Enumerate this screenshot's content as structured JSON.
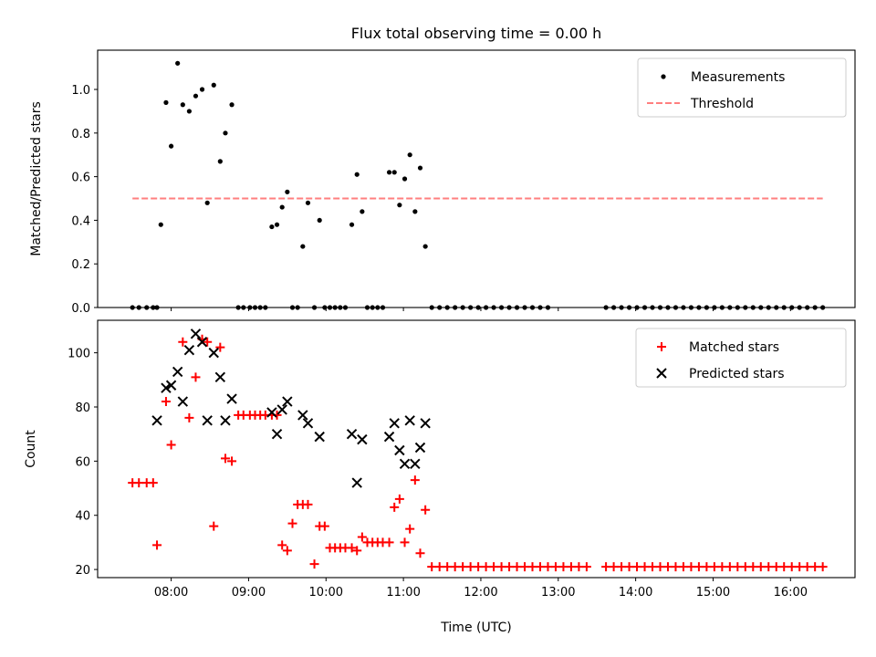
{
  "chart_data": [
    {
      "type": "scatter",
      "title": "Flux total observing time = 0.00 h",
      "xlabel": "",
      "ylabel": "Matched/Predicted stars",
      "xlim": [
        "07:03",
        "16:50"
      ],
      "ylim": [
        0,
        1.18
      ],
      "yticks": [
        "0.0",
        "0.2",
        "0.4",
        "0.6",
        "0.8",
        "1.0"
      ],
      "xticks": [
        "08:00",
        "09:00",
        "10:00",
        "11:00",
        "12:00",
        "13:00",
        "14:00",
        "15:00",
        "16:00"
      ],
      "show_xtick_labels": false,
      "legend": "top-right",
      "grid": false,
      "series": [
        {
          "name": "Measurements",
          "kind": "scatter",
          "marker": "dot",
          "color": "#000000",
          "points": [
            [
              "07:30",
              0
            ],
            [
              "07:35",
              0
            ],
            [
              "07:41",
              0
            ],
            [
              "07:46",
              0
            ],
            [
              "07:49",
              0
            ],
            [
              "07:52",
              0.38
            ],
            [
              "07:56",
              0.94
            ],
            [
              "08:00",
              0.74
            ],
            [
              "08:05",
              1.12
            ],
            [
              "08:09",
              0.93
            ],
            [
              "08:14",
              0.9
            ],
            [
              "08:19",
              0.97
            ],
            [
              "08:24",
              1.0
            ],
            [
              "08:28",
              0.48
            ],
            [
              "08:33",
              1.02
            ],
            [
              "08:38",
              0.67
            ],
            [
              "08:42",
              0.8
            ],
            [
              "08:47",
              0.93
            ],
            [
              "08:52",
              0
            ],
            [
              "08:56",
              0
            ],
            [
              "09:01",
              0
            ],
            [
              "09:05",
              0
            ],
            [
              "09:09",
              0
            ],
            [
              "09:13",
              0
            ],
            [
              "09:18",
              0.37
            ],
            [
              "09:22",
              0.38
            ],
            [
              "09:26",
              0.46
            ],
            [
              "09:30",
              0.53
            ],
            [
              "09:34",
              0
            ],
            [
              "09:38",
              0
            ],
            [
              "09:42",
              0.28
            ],
            [
              "09:46",
              0.48
            ],
            [
              "09:51",
              0
            ],
            [
              "09:55",
              0.4
            ],
            [
              "09:59",
              0
            ],
            [
              "10:03",
              0
            ],
            [
              "10:07",
              0
            ],
            [
              "10:11",
              0
            ],
            [
              "10:15",
              0
            ],
            [
              "10:20",
              0.38
            ],
            [
              "10:24",
              0.61
            ],
            [
              "10:28",
              0.44
            ],
            [
              "10:32",
              0
            ],
            [
              "10:36",
              0
            ],
            [
              "10:40",
              0
            ],
            [
              "10:44",
              0
            ],
            [
              "10:49",
              0.62
            ],
            [
              "10:53",
              0.62
            ],
            [
              "10:57",
              0.47
            ],
            [
              "11:01",
              0.59
            ],
            [
              "11:05",
              0.7
            ],
            [
              "11:09",
              0.44
            ],
            [
              "11:13",
              0.64
            ],
            [
              "11:17",
              0.28
            ],
            [
              "11:22",
              0
            ],
            [
              "11:28",
              0
            ],
            [
              "11:34",
              0
            ],
            [
              "11:40",
              0
            ],
            [
              "11:46",
              0
            ],
            [
              "11:52",
              0
            ],
            [
              "11:58",
              0
            ],
            [
              "12:04",
              0
            ],
            [
              "12:10",
              0
            ],
            [
              "12:16",
              0
            ],
            [
              "12:22",
              0
            ],
            [
              "12:28",
              0
            ],
            [
              "12:34",
              0
            ],
            [
              "12:40",
              0
            ],
            [
              "12:46",
              0
            ],
            [
              "12:52",
              0
            ],
            [
              "13:37",
              0
            ],
            [
              "13:43",
              0
            ],
            [
              "13:49",
              0
            ],
            [
              "13:55",
              0
            ],
            [
              "14:01",
              0
            ],
            [
              "14:07",
              0
            ],
            [
              "14:13",
              0
            ],
            [
              "14:19",
              0
            ],
            [
              "14:25",
              0
            ],
            [
              "14:31",
              0
            ],
            [
              "14:37",
              0
            ],
            [
              "14:43",
              0
            ],
            [
              "14:49",
              0
            ],
            [
              "14:55",
              0
            ],
            [
              "15:01",
              0
            ],
            [
              "15:07",
              0
            ],
            [
              "15:13",
              0
            ],
            [
              "15:19",
              0
            ],
            [
              "15:25",
              0
            ],
            [
              "15:31",
              0
            ],
            [
              "15:37",
              0
            ],
            [
              "15:43",
              0
            ],
            [
              "15:49",
              0
            ],
            [
              "15:55",
              0
            ],
            [
              "16:01",
              0
            ],
            [
              "16:07",
              0
            ],
            [
              "16:13",
              0
            ],
            [
              "16:19",
              0
            ],
            [
              "16:25",
              0
            ]
          ]
        },
        {
          "name": "Threshold",
          "kind": "line",
          "dash": "dashed",
          "color": "#ff7f7f",
          "points": [
            [
              "07:30",
              0.5
            ],
            [
              "16:25",
              0.5
            ]
          ]
        }
      ]
    },
    {
      "type": "scatter",
      "title": "",
      "xlabel": "Time (UTC)",
      "ylabel": "Count",
      "xlim": [
        "07:03",
        "16:50"
      ],
      "ylim": [
        17,
        112
      ],
      "yticks": [
        "20",
        "40",
        "60",
        "80",
        "100"
      ],
      "xticks": [
        "08:00",
        "09:00",
        "10:00",
        "11:00",
        "12:00",
        "13:00",
        "14:00",
        "15:00",
        "16:00"
      ],
      "show_xtick_labels": true,
      "legend": "top-right",
      "grid": false,
      "series": [
        {
          "name": "Matched stars",
          "kind": "scatter",
          "marker": "plus",
          "color": "#ff0000",
          "points": [
            [
              "07:30",
              52
            ],
            [
              "07:35",
              52
            ],
            [
              "07:41",
              52
            ],
            [
              "07:46",
              52
            ],
            [
              "07:49",
              29
            ],
            [
              "07:56",
              82
            ],
            [
              "08:00",
              66
            ],
            [
              "08:09",
              104
            ],
            [
              "08:14",
              76
            ],
            [
              "08:19",
              91
            ],
            [
              "08:24",
              105
            ],
            [
              "08:28",
              104
            ],
            [
              "08:33",
              36
            ],
            [
              "08:38",
              102
            ],
            [
              "08:42",
              61
            ],
            [
              "08:47",
              60
            ],
            [
              "08:52",
              77
            ],
            [
              "08:56",
              77
            ],
            [
              "09:01",
              77
            ],
            [
              "09:05",
              77
            ],
            [
              "09:09",
              77
            ],
            [
              "09:13",
              77
            ],
            [
              "09:18",
              77
            ],
            [
              "09:22",
              77
            ],
            [
              "09:26",
              29
            ],
            [
              "09:30",
              27
            ],
            [
              "09:34",
              37
            ],
            [
              "09:38",
              44
            ],
            [
              "09:42",
              44
            ],
            [
              "09:46",
              44
            ],
            [
              "09:51",
              22
            ],
            [
              "09:55",
              36
            ],
            [
              "09:59",
              36
            ],
            [
              "10:03",
              28
            ],
            [
              "10:07",
              28
            ],
            [
              "10:11",
              28
            ],
            [
              "10:15",
              28
            ],
            [
              "10:20",
              28
            ],
            [
              "10:24",
              27
            ],
            [
              "10:28",
              32
            ],
            [
              "10:32",
              30
            ],
            [
              "10:36",
              30
            ],
            [
              "10:40",
              30
            ],
            [
              "10:44",
              30
            ],
            [
              "10:49",
              30
            ],
            [
              "10:53",
              43
            ],
            [
              "10:57",
              46
            ],
            [
              "11:01",
              30
            ],
            [
              "11:05",
              35
            ],
            [
              "11:09",
              53
            ],
            [
              "11:13",
              26
            ],
            [
              "11:17",
              42
            ],
            [
              "11:22",
              21
            ],
            [
              "11:28",
              21
            ],
            [
              "11:34",
              21
            ],
            [
              "11:40",
              21
            ],
            [
              "11:46",
              21
            ],
            [
              "11:52",
              21
            ],
            [
              "11:58",
              21
            ],
            [
              "12:04",
              21
            ],
            [
              "12:10",
              21
            ],
            [
              "12:16",
              21
            ],
            [
              "12:22",
              21
            ],
            [
              "12:28",
              21
            ],
            [
              "12:34",
              21
            ],
            [
              "12:40",
              21
            ],
            [
              "12:46",
              21
            ],
            [
              "12:52",
              21
            ],
            [
              "12:58",
              21
            ],
            [
              "13:04",
              21
            ],
            [
              "13:10",
              21
            ],
            [
              "13:16",
              21
            ],
            [
              "13:22",
              21
            ],
            [
              "13:37",
              21
            ],
            [
              "13:43",
              21
            ],
            [
              "13:49",
              21
            ],
            [
              "13:55",
              21
            ],
            [
              "14:01",
              21
            ],
            [
              "14:07",
              21
            ],
            [
              "14:13",
              21
            ],
            [
              "14:19",
              21
            ],
            [
              "14:25",
              21
            ],
            [
              "14:31",
              21
            ],
            [
              "14:37",
              21
            ],
            [
              "14:43",
              21
            ],
            [
              "14:49",
              21
            ],
            [
              "14:55",
              21
            ],
            [
              "15:01",
              21
            ],
            [
              "15:07",
              21
            ],
            [
              "15:13",
              21
            ],
            [
              "15:19",
              21
            ],
            [
              "15:25",
              21
            ],
            [
              "15:31",
              21
            ],
            [
              "15:37",
              21
            ],
            [
              "15:43",
              21
            ],
            [
              "15:49",
              21
            ],
            [
              "15:55",
              21
            ],
            [
              "16:01",
              21
            ],
            [
              "16:07",
              21
            ],
            [
              "16:13",
              21
            ],
            [
              "16:19",
              21
            ],
            [
              "16:25",
              21
            ]
          ]
        },
        {
          "name": "Predicted stars",
          "kind": "scatter",
          "marker": "x",
          "color": "#000000",
          "points": [
            [
              "07:49",
              75
            ],
            [
              "07:56",
              87
            ],
            [
              "08:00",
              88
            ],
            [
              "08:05",
              93
            ],
            [
              "08:09",
              82
            ],
            [
              "08:14",
              101
            ],
            [
              "08:19",
              107
            ],
            [
              "08:24",
              104
            ],
            [
              "08:28",
              75
            ],
            [
              "08:33",
              100
            ],
            [
              "08:38",
              91
            ],
            [
              "08:42",
              75
            ],
            [
              "08:47",
              83
            ],
            [
              "09:18",
              78
            ],
            [
              "09:22",
              70
            ],
            [
              "09:26",
              79
            ],
            [
              "09:30",
              82
            ],
            [
              "09:42",
              77
            ],
            [
              "09:46",
              74
            ],
            [
              "09:55",
              69
            ],
            [
              "10:20",
              70
            ],
            [
              "10:24",
              52
            ],
            [
              "10:28",
              68
            ],
            [
              "10:49",
              69
            ],
            [
              "10:53",
              74
            ],
            [
              "10:57",
              64
            ],
            [
              "11:01",
              59
            ],
            [
              "11:05",
              75
            ],
            [
              "11:09",
              59
            ],
            [
              "11:13",
              65
            ],
            [
              "11:17",
              74
            ]
          ]
        }
      ]
    }
  ]
}
